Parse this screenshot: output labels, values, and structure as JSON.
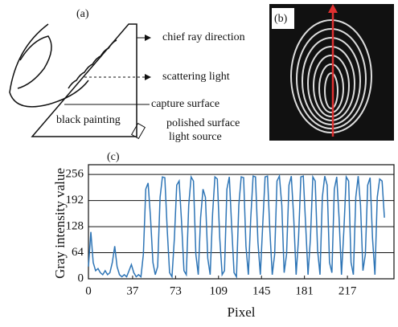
{
  "panel_a": {
    "label": "(a)",
    "labels": [
      "chief ray direction",
      "scattering light",
      "capture surface",
      "black painting",
      "polished surface",
      "light source"
    ]
  },
  "panel_b": {
    "label": "(b)"
  },
  "chart_data": {
    "type": "line",
    "panel_label": "(c)",
    "x_label": "Pixel",
    "y_label": "Gray intensity value",
    "color": "#2e75b6",
    "grid": true,
    "xlim": [
      0,
      256
    ],
    "ylim": [
      0,
      280
    ],
    "xticks": [
      0,
      37,
      73,
      109,
      145,
      181,
      217
    ],
    "yticks": [
      0,
      64,
      128,
      192,
      256
    ],
    "x": [
      0,
      2,
      4,
      6,
      8,
      10,
      12,
      14,
      16,
      18,
      20,
      22,
      24,
      26,
      28,
      30,
      32,
      34,
      36,
      38,
      40,
      42,
      44,
      46,
      48,
      50,
      52,
      54,
      56,
      58,
      60,
      62,
      64,
      66,
      68,
      70,
      72,
      74,
      76,
      78,
      80,
      82,
      84,
      86,
      88,
      90,
      92,
      94,
      96,
      98,
      100,
      102,
      104,
      106,
      108,
      110,
      112,
      114,
      116,
      118,
      120,
      122,
      124,
      126,
      128,
      130,
      132,
      134,
      136,
      138,
      140,
      142,
      144,
      146,
      148,
      150,
      152,
      154,
      156,
      158,
      160,
      162,
      164,
      166,
      168,
      170,
      172,
      174,
      176,
      178,
      180,
      182,
      184,
      186,
      188,
      190,
      192,
      194,
      196,
      198,
      200,
      202,
      204,
      206,
      208,
      210,
      212,
      214,
      216,
      218,
      220,
      222,
      224,
      226,
      228,
      230,
      232,
      234,
      236,
      238,
      240,
      242,
      244,
      246,
      248
    ],
    "values": [
      30,
      115,
      40,
      20,
      25,
      15,
      10,
      20,
      10,
      15,
      40,
      80,
      30,
      10,
      5,
      10,
      5,
      20,
      35,
      15,
      5,
      10,
      5,
      60,
      220,
      235,
      150,
      40,
      10,
      30,
      200,
      250,
      248,
      120,
      15,
      5,
      100,
      230,
      240,
      140,
      20,
      10,
      180,
      250,
      240,
      60,
      10,
      150,
      220,
      200,
      50,
      10,
      160,
      250,
      245,
      100,
      10,
      20,
      220,
      250,
      130,
      15,
      5,
      180,
      250,
      248,
      80,
      10,
      150,
      252,
      250,
      90,
      10,
      130,
      250,
      252,
      120,
      10,
      60,
      240,
      252,
      180,
      15,
      60,
      230,
      252,
      150,
      10,
      100,
      250,
      252,
      130,
      10,
      100,
      250,
      240,
      70,
      10,
      200,
      252,
      230,
      40,
      15,
      220,
      250,
      150,
      10,
      120,
      250,
      240,
      40,
      10,
      200,
      252,
      180,
      20,
      60,
      230,
      248,
      100,
      10,
      200,
      245,
      240,
      150
    ]
  }
}
